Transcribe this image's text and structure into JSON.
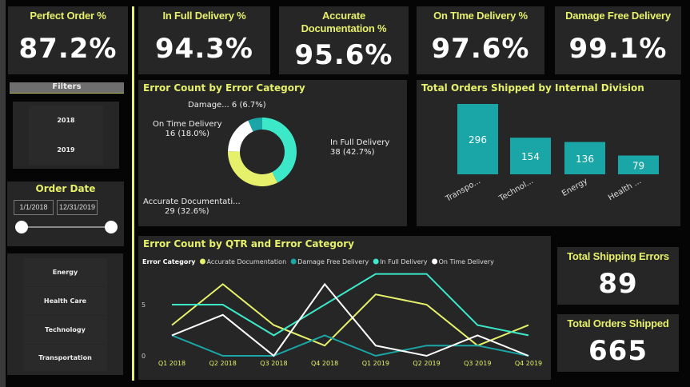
{
  "kpis": [
    {
      "title": "Perfect Order %",
      "value": "87.2%"
    },
    {
      "title": "In Full Delivery %",
      "value": "94.3%"
    },
    {
      "title": "Accurate Documentation %",
      "value": "95.6%"
    },
    {
      "title": "On TIme Delivery %",
      "value": "97.6%"
    },
    {
      "title": "Damage Free Delivery",
      "value": "99.1%"
    }
  ],
  "filters": {
    "label": "Filters",
    "years": [
      "2018",
      "2019"
    ],
    "order_date": {
      "label": "Order Date",
      "start": "1/1/2018",
      "end": "12/31/2019",
      "range_fraction": [
        0,
        1
      ]
    },
    "divisions": [
      "Energy",
      "Health Care",
      "Technology",
      "Transportation"
    ]
  },
  "totals": {
    "errors_label": "Total Shipping Errors",
    "errors": "89",
    "orders_label": "Total Orders Shipped",
    "orders": "665"
  },
  "colors": {
    "accent": "#e6f06a",
    "accurate": "#e6f06a",
    "damage": "#1aa6a6",
    "infull": "#3de8c8",
    "ontime": "#ffffff",
    "panel": "#262626"
  },
  "chart_data": [
    {
      "type": "pie",
      "title": "Error Count by Error Category",
      "donut": true,
      "slices": [
        {
          "name": "In Full Delivery",
          "value": 38,
          "label": "38 (42.7%)"
        },
        {
          "name": "Accurate Documentati...",
          "value": 29,
          "label": "29 (32.6%)"
        },
        {
          "name": "On Time Delivery",
          "value": 16,
          "label": "16 (18.0%)"
        },
        {
          "name": "Damage...",
          "value": 6,
          "label": "6 (6.7%)"
        }
      ]
    },
    {
      "type": "bar",
      "title": "Total Orders Shipped by Internal Division",
      "categories": [
        "Transpo...",
        "Technol...",
        "Energy",
        "Health ..."
      ],
      "values": [
        296,
        154,
        136,
        79
      ]
    },
    {
      "type": "line",
      "title": "Error Count by QTR and Error Category",
      "legend_title": "Error Category",
      "legend": "top-left",
      "categories": [
        "Q1 2018",
        "Q2 2018",
        "Q3 2018",
        "Q4 2018",
        "Q1 2019",
        "Q2 2019",
        "Q3 2019",
        "Q4 2019"
      ],
      "yticks": [
        "0",
        "5"
      ],
      "ylim": [
        0,
        8
      ],
      "series": [
        {
          "name": "Accurate Documentation",
          "values": [
            3,
            7,
            3,
            1,
            6,
            5,
            1,
            3
          ]
        },
        {
          "name": "Damage Free Delivery",
          "values": [
            2,
            0,
            0,
            2,
            0,
            1,
            1,
            0
          ]
        },
        {
          "name": "In Full Delivery",
          "values": [
            5,
            5,
            2,
            5,
            8,
            8,
            3,
            2
          ]
        },
        {
          "name": "On Time Delivery",
          "values": [
            2,
            4,
            0,
            7,
            1,
            0,
            2,
            0
          ]
        }
      ]
    }
  ]
}
